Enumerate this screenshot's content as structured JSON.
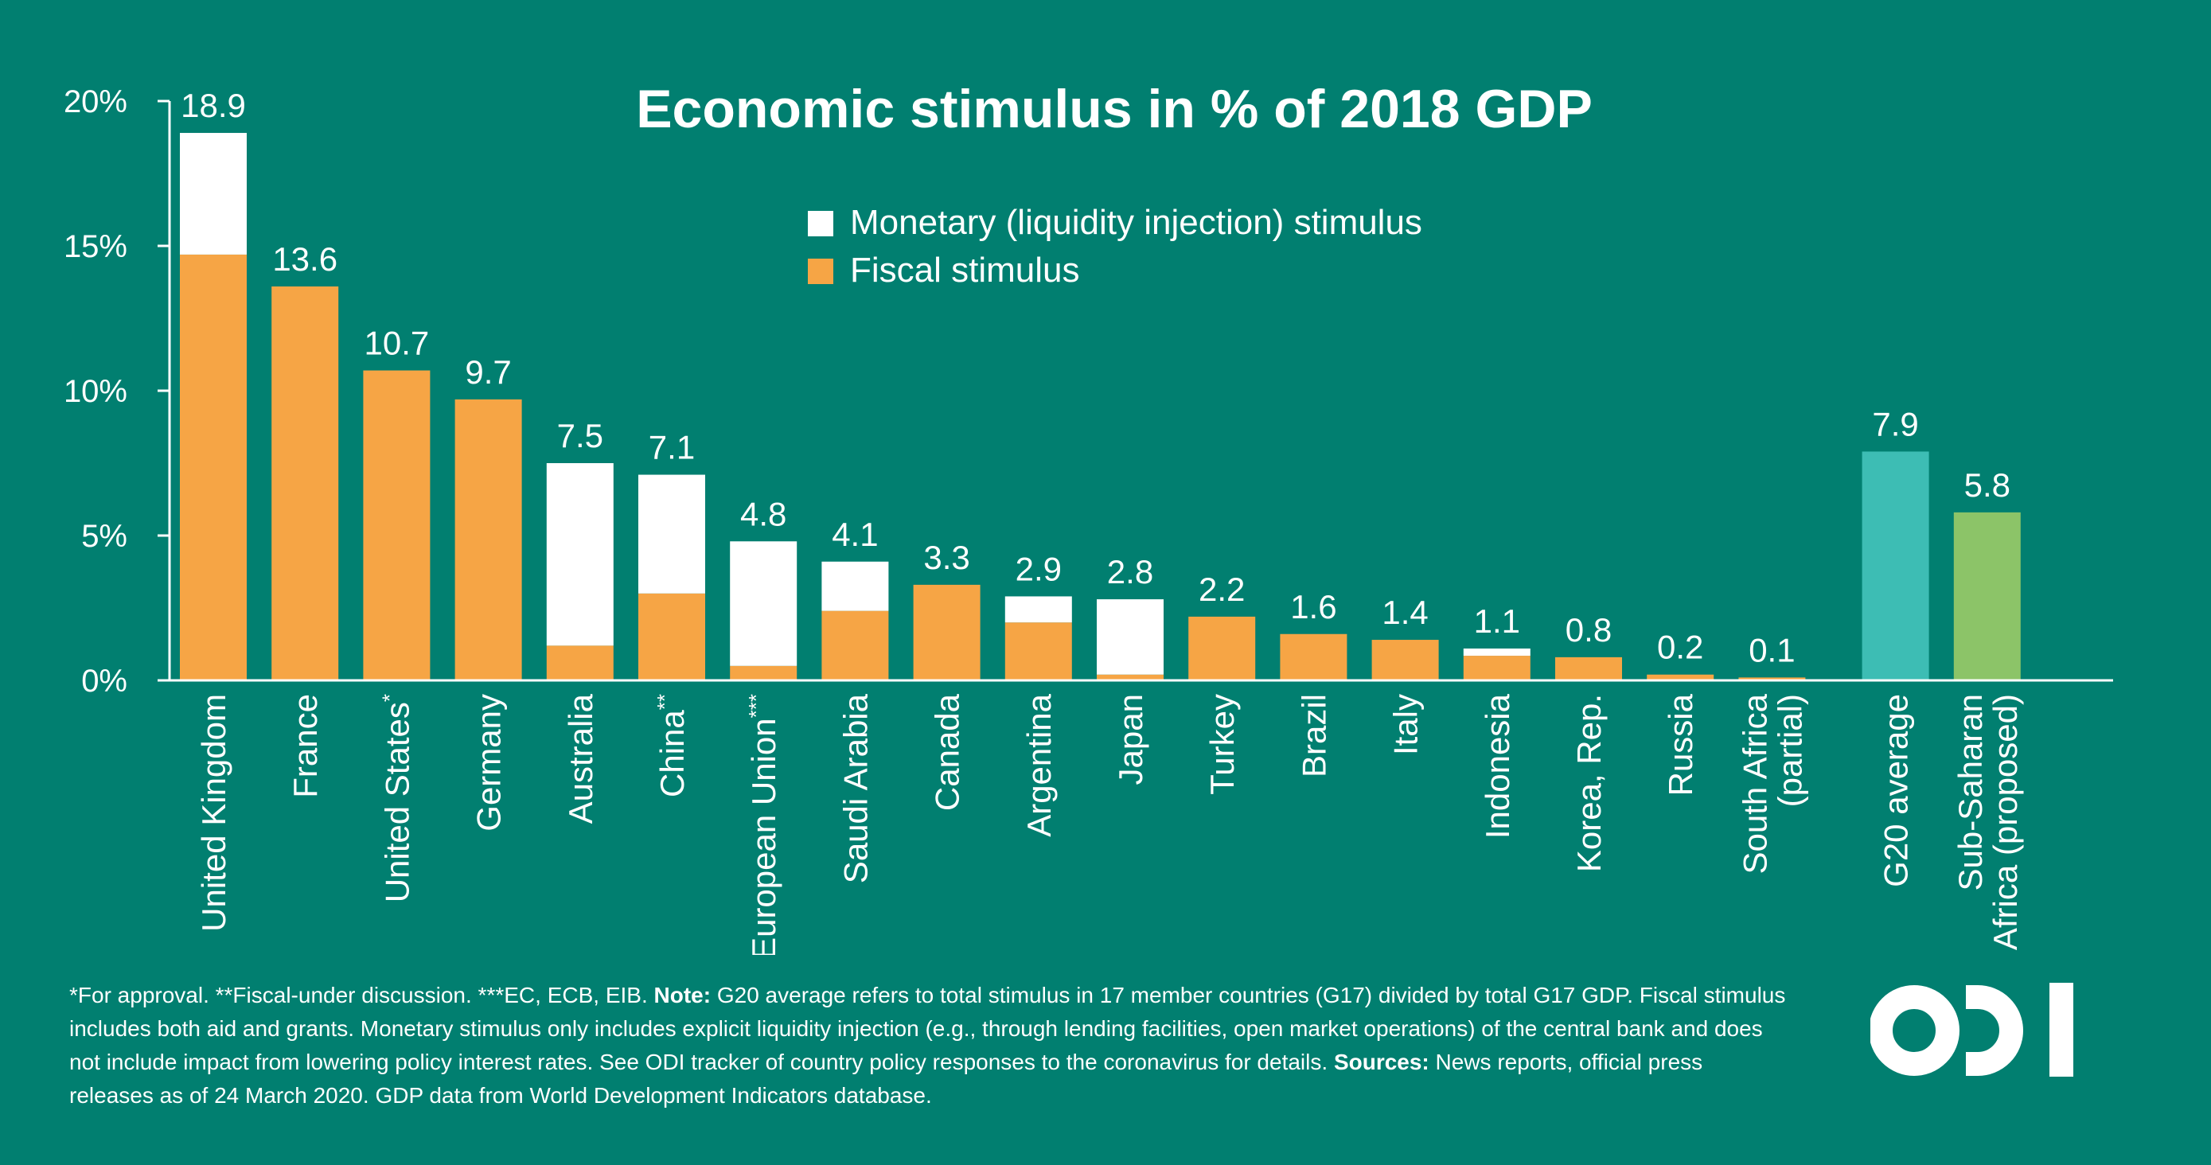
{
  "chart_data": {
    "type": "bar",
    "stacked": true,
    "title": "Economic stimulus in % of 2018 GDP",
    "ylabel": "",
    "xlabel": "",
    "ylim": [
      0,
      20
    ],
    "yticks": [
      0,
      5,
      10,
      15,
      20
    ],
    "ytick_labels": [
      "0%",
      "5%",
      "10%",
      "15%",
      "20%"
    ],
    "legend": [
      {
        "name": "Monetary (liquidity injection) stimulus",
        "color": "#ffffff"
      },
      {
        "name": "Fiscal stimulus",
        "color": "#f6a545"
      }
    ],
    "legend_position": "top-center",
    "bars": [
      {
        "label": [
          "United Kingdom"
        ],
        "total_label": "18.9",
        "fiscal": 14.7,
        "monetary": 4.2,
        "total": 18.9
      },
      {
        "label": [
          "France"
        ],
        "total_label": "13.6",
        "fiscal": 13.6,
        "monetary": 0,
        "total": 13.6
      },
      {
        "label": [
          "United States"
        ],
        "footnote_mark": "*",
        "total_label": "10.7",
        "fiscal": 10.7,
        "monetary": 0,
        "total": 10.7
      },
      {
        "label": [
          "Germany"
        ],
        "total_label": "9.7",
        "fiscal": 9.7,
        "monetary": 0,
        "total": 9.7
      },
      {
        "label": [
          "Australia"
        ],
        "total_label": "7.5",
        "fiscal": 1.2,
        "monetary": 6.3,
        "total": 7.5
      },
      {
        "label": [
          "China"
        ],
        "footnote_mark": "**",
        "total_label": "7.1",
        "fiscal": 3.0,
        "monetary": 4.1,
        "total": 7.1
      },
      {
        "label": [
          "European Union"
        ],
        "footnote_mark": "***",
        "total_label": "4.8",
        "fiscal": 0.5,
        "monetary": 4.3,
        "total": 4.8
      },
      {
        "label": [
          "Saudi Arabia"
        ],
        "total_label": "4.1",
        "fiscal": 2.4,
        "monetary": 1.7,
        "total": 4.1
      },
      {
        "label": [
          "Canada"
        ],
        "total_label": "3.3",
        "fiscal": 3.3,
        "monetary": 0,
        "total": 3.3
      },
      {
        "label": [
          "Argentina"
        ],
        "total_label": "2.9",
        "fiscal": 2.0,
        "monetary": 0.9,
        "total": 2.9
      },
      {
        "label": [
          "Japan"
        ],
        "total_label": "2.8",
        "fiscal": 0.2,
        "monetary": 2.6,
        "total": 2.8
      },
      {
        "label": [
          "Turkey"
        ],
        "total_label": "2.2",
        "fiscal": 2.2,
        "monetary": 0,
        "total": 2.2
      },
      {
        "label": [
          "Brazil"
        ],
        "total_label": "1.6",
        "fiscal": 1.6,
        "monetary": 0,
        "total": 1.6
      },
      {
        "label": [
          "Italy"
        ],
        "total_label": "1.4",
        "fiscal": 1.4,
        "monetary": 0,
        "total": 1.4
      },
      {
        "label": [
          "Indonesia"
        ],
        "total_label": "1.1",
        "fiscal": 0.85,
        "monetary": 0.25,
        "total": 1.1
      },
      {
        "label": [
          "Korea, Rep."
        ],
        "total_label": "0.8",
        "fiscal": 0.8,
        "monetary": 0,
        "total": 0.8
      },
      {
        "label": [
          "Russia"
        ],
        "total_label": "0.2",
        "fiscal": 0.2,
        "monetary": 0,
        "total": 0.2
      },
      {
        "label": [
          "South Africa",
          "(partial)"
        ],
        "total_label": "0.1",
        "fiscal": 0.1,
        "monetary": 0,
        "total": 0.1
      },
      {
        "label": [
          "G20 average"
        ],
        "total_label": "7.9",
        "single_color": "#3dbdb4",
        "total": 7.9,
        "group_gap_before": true
      },
      {
        "label": [
          "Sub-Saharan",
          "Africa (proposed)"
        ],
        "total_label": "5.8",
        "single_color": "#8cc468",
        "total": 5.8
      }
    ]
  },
  "colors": {
    "background": "#017f70",
    "fiscal": "#f6a545",
    "monetary": "#ffffff",
    "g20": "#3dbdb4",
    "ssa": "#8cc468",
    "text": "#ffffff"
  },
  "footnote": {
    "intro": "*For approval. **Fiscal-under discussion. ***EC, ECB, EIB. ",
    "note_label": "Note:",
    "note_text": " G20 average refers to total stimulus in 17 member countries (G17) divided by total G17 GDP. Fiscal stimulus includes both aid and grants. Monetary stimulus only includes explicit liquidity injection (e.g., through lending facilities, open market operations) of the central bank and does not include impact from lowering policy interest rates. See ODI tracker of country policy responses to the coronavirus for details. ",
    "sources_label": "Sources:",
    "sources_text": " News reports, official press releases as of 24 March 2020. GDP data from World Development Indicators database."
  },
  "logo": {
    "text": "ODI",
    "icon": "odi-logo-icon"
  }
}
